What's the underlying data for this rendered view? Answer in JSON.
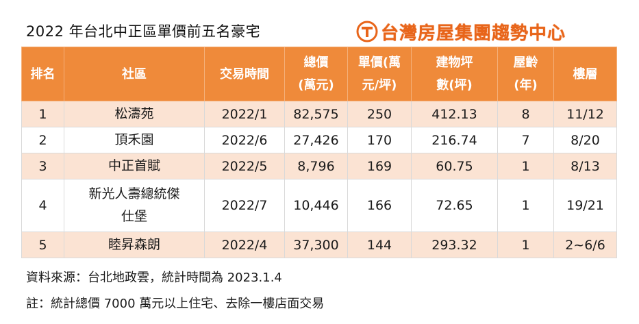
{
  "title": "2022 年台北中正區單價前五名豪宅",
  "brand": {
    "name": "台灣房屋集團趨勢中心",
    "logo_icon": "taiwan-realty-logo-icon",
    "accent_color": "#e8651a"
  },
  "table": {
    "header_color": "#ef8a3a",
    "stripe_color": "#fbe3d3",
    "headers": [
      {
        "line1": "排名",
        "line2": ""
      },
      {
        "line1": "社區",
        "line2": ""
      },
      {
        "line1": "交易時間",
        "line2": ""
      },
      {
        "line1": "總價",
        "line2": "(萬元)"
      },
      {
        "line1": "單價(萬",
        "line2": "元/坪)"
      },
      {
        "line1": "建物坪",
        "line2": "數(坪)"
      },
      {
        "line1": "屋齡",
        "line2": "(年)"
      },
      {
        "line1": "樓層",
        "line2": ""
      }
    ],
    "rows": [
      {
        "rank": "1",
        "community_l1": "松濤苑",
        "community_l2": "",
        "date": "2022/1",
        "total": "82,575",
        "unit": "250",
        "area": "412.13",
        "age": "8",
        "floor": "11/12"
      },
      {
        "rank": "2",
        "community_l1": "頂禾園",
        "community_l2": "",
        "date": "2022/6",
        "total": "27,426",
        "unit": "170",
        "area": "216.74",
        "age": "7",
        "floor": "8/20"
      },
      {
        "rank": "3",
        "community_l1": "中正首賦",
        "community_l2": "",
        "date": "2022/5",
        "total": "8,796",
        "unit": "169",
        "area": "60.75",
        "age": "1",
        "floor": "8/13"
      },
      {
        "rank": "4",
        "community_l1": "新光人壽總統傑",
        "community_l2": "仕堡",
        "date": "2022/7",
        "total": "10,446",
        "unit": "166",
        "area": "72.65",
        "age": "1",
        "floor": "19/21"
      },
      {
        "rank": "5",
        "community_l1": "睦昇森朗",
        "community_l2": "",
        "date": "2022/4",
        "total": "37,300",
        "unit": "144",
        "area": "293.32",
        "age": "1",
        "floor": "2~6/6"
      }
    ]
  },
  "notes": {
    "source": "資料來源：台北地政雲，統計時間為 2023.1.4",
    "remark": "註：統計總價 7000 萬元以上住宅、去除一樓店面交易"
  }
}
